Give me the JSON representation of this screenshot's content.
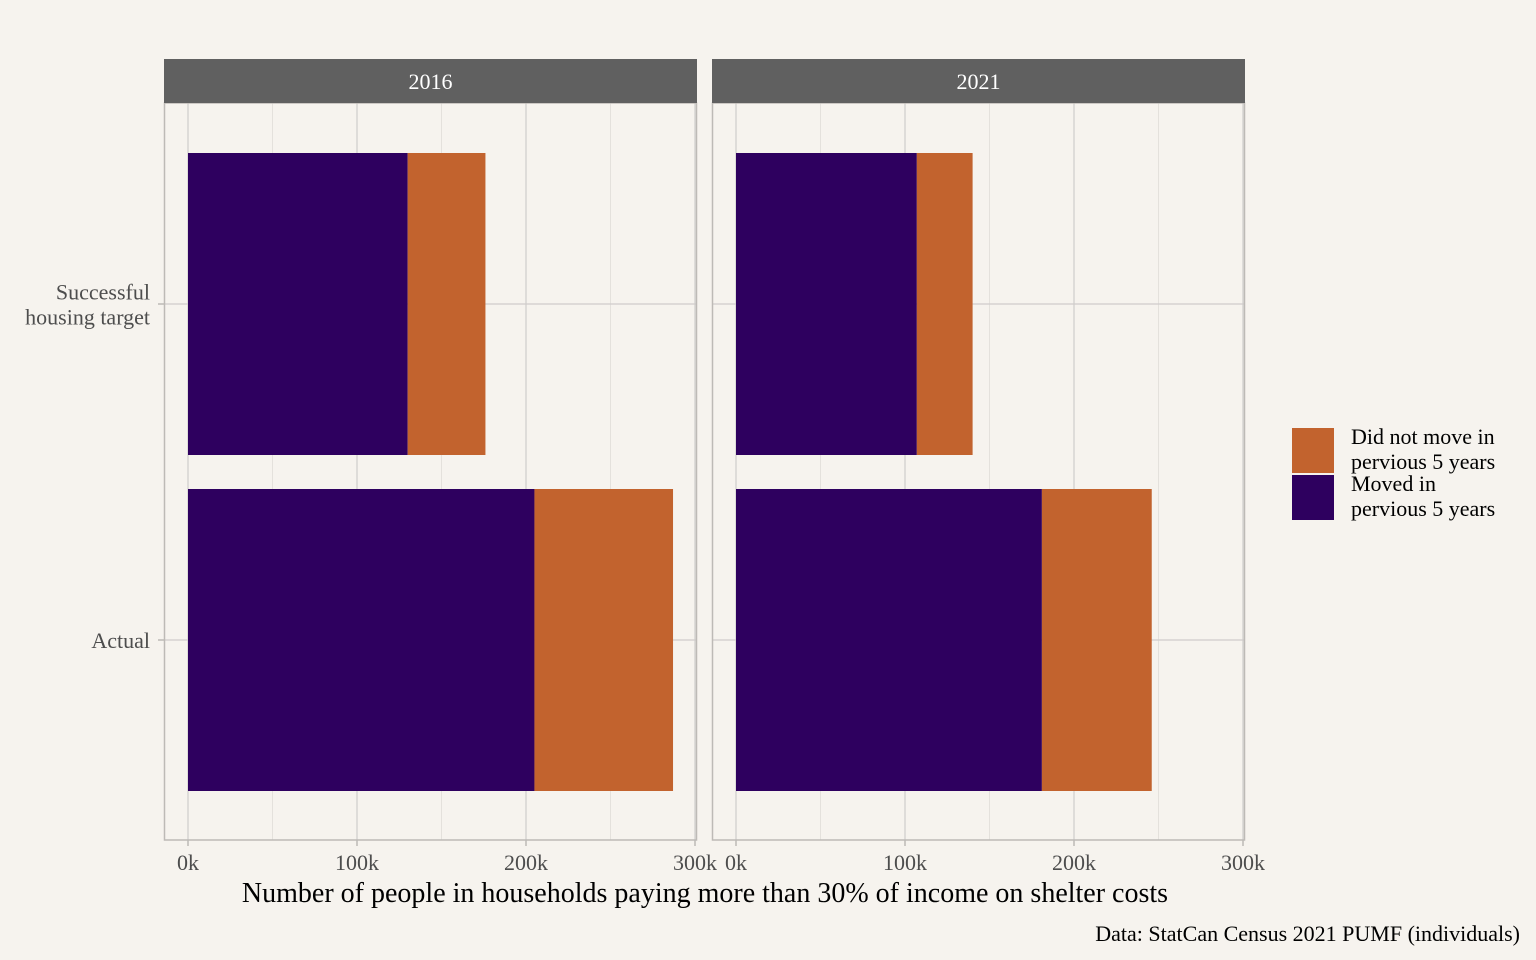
{
  "chart_data": {
    "type": "bar",
    "orientation": "horizontal",
    "stacked": true,
    "facets": [
      "2016",
      "2021"
    ],
    "categories": [
      "Successful\nhousing target",
      "Actual"
    ],
    "series": [
      {
        "name": "Moved in\npervious 5 years",
        "color": "#2e005f",
        "values": {
          "2016": [
            130000,
            205000
          ],
          "2021": [
            107000,
            181000
          ]
        }
      },
      {
        "name": "Did not move in\npervious 5 years",
        "color": "#c2632e",
        "values": {
          "2016": [
            46000,
            82000
          ],
          "2021": [
            33000,
            65000
          ]
        }
      }
    ],
    "xlim": [
      0,
      300000
    ],
    "xticks": [
      "0k",
      "100k",
      "200k",
      "300k"
    ],
    "xlabel": "Number of people in households paying more than 30% of income on shelter costs",
    "caption": "Data: StatCan Census 2021 PUMF (individuals)",
    "legend_position": "right",
    "legend_order": [
      "Did not move in\npervious 5 years",
      "Moved in\npervious 5 years"
    ],
    "grid": true
  }
}
